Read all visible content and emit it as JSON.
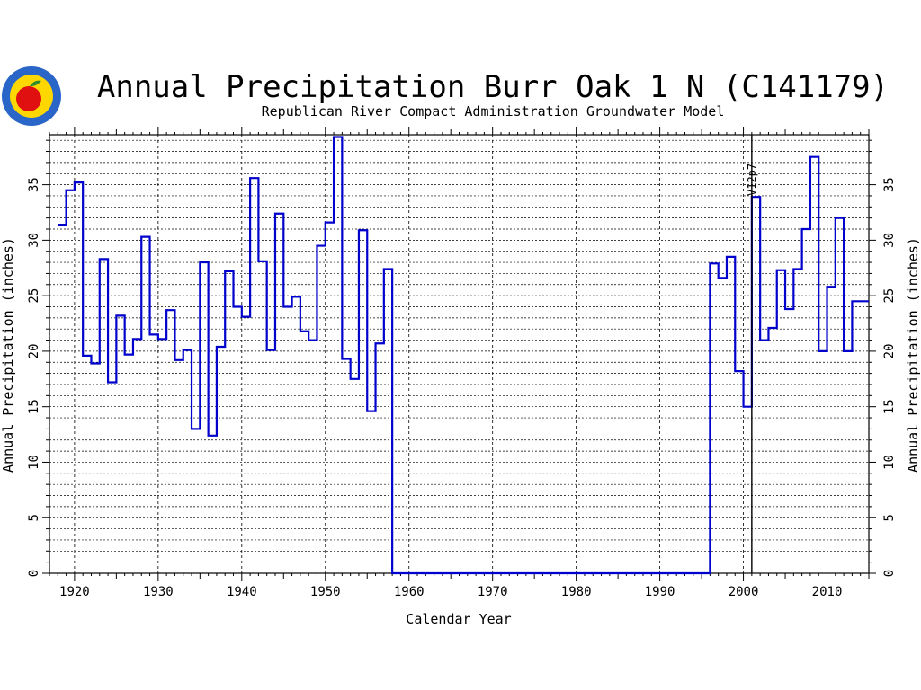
{
  "chart_data": {
    "type": "line",
    "step": true,
    "title": "Annual Precipitation Burr Oak 1 N (C141179)",
    "subtitle": "Republican River Compact Administration Groundwater Model",
    "xlabel": "Calendar Year",
    "ylabel_left": "Annual Precipitation (inches)",
    "ylabel_right": "Annual Precipitation (inches)",
    "xlim": [
      1917,
      2015
    ],
    "ylim": [
      0,
      39.5
    ],
    "x_ticks": [
      1920,
      1930,
      1940,
      1950,
      1960,
      1970,
      1980,
      1990,
      2000,
      2010
    ],
    "y_ticks": [
      0,
      5,
      10,
      15,
      20,
      25,
      30,
      35
    ],
    "grid": true,
    "minor_y_step": 1,
    "annotation": {
      "text": "V12p7",
      "x": 2001
    },
    "series": [
      {
        "color": "#0000cc",
        "points": [
          [
            1918,
            31.4
          ],
          [
            1919,
            34.5
          ],
          [
            1920,
            35.2
          ],
          [
            1921,
            19.6
          ],
          [
            1922,
            18.9
          ],
          [
            1923,
            28.3
          ],
          [
            1924,
            17.2
          ],
          [
            1925,
            23.2
          ],
          [
            1926,
            19.7
          ],
          [
            1927,
            21.1
          ],
          [
            1928,
            30.3
          ],
          [
            1929,
            21.5
          ],
          [
            1930,
            21.1
          ],
          [
            1931,
            23.7
          ],
          [
            1932,
            19.2
          ],
          [
            1933,
            20.1
          ],
          [
            1934,
            13.0
          ],
          [
            1935,
            28.0
          ],
          [
            1936,
            12.4
          ],
          [
            1937,
            20.4
          ],
          [
            1938,
            27.2
          ],
          [
            1939,
            24.0
          ],
          [
            1940,
            23.1
          ],
          [
            1941,
            35.6
          ],
          [
            1942,
            28.1
          ],
          [
            1943,
            20.1
          ],
          [
            1944,
            32.4
          ],
          [
            1945,
            24.0
          ],
          [
            1946,
            24.9
          ],
          [
            1947,
            21.8
          ],
          [
            1948,
            21.0
          ],
          [
            1949,
            29.5
          ],
          [
            1950,
            31.6
          ],
          [
            1951,
            39.3
          ],
          [
            1952,
            19.3
          ],
          [
            1953,
            17.5
          ],
          [
            1954,
            30.9
          ],
          [
            1955,
            14.6
          ],
          [
            1956,
            20.7
          ],
          [
            1957,
            27.4
          ],
          [
            1958,
            0.0
          ],
          [
            1959,
            0.0
          ],
          [
            1960,
            0.0
          ],
          [
            1961,
            0.0
          ],
          [
            1962,
            0.0
          ],
          [
            1963,
            0.0
          ],
          [
            1964,
            0.0
          ],
          [
            1965,
            0.0
          ],
          [
            1966,
            0.0
          ],
          [
            1967,
            0.0
          ],
          [
            1968,
            0.0
          ],
          [
            1969,
            0.0
          ],
          [
            1970,
            0.0
          ],
          [
            1971,
            0.0
          ],
          [
            1972,
            0.0
          ],
          [
            1973,
            0.0
          ],
          [
            1974,
            0.0
          ],
          [
            1975,
            0.0
          ],
          [
            1976,
            0.0
          ],
          [
            1977,
            0.0
          ],
          [
            1978,
            0.0
          ],
          [
            1979,
            0.0
          ],
          [
            1980,
            0.0
          ],
          [
            1981,
            0.0
          ],
          [
            1982,
            0.0
          ],
          [
            1983,
            0.0
          ],
          [
            1984,
            0.0
          ],
          [
            1985,
            0.0
          ],
          [
            1986,
            0.0
          ],
          [
            1987,
            0.0
          ],
          [
            1988,
            0.0
          ],
          [
            1989,
            0.0
          ],
          [
            1990,
            0.0
          ],
          [
            1991,
            0.0
          ],
          [
            1992,
            0.0
          ],
          [
            1993,
            0.0
          ],
          [
            1994,
            0.0
          ],
          [
            1995,
            0.0
          ],
          [
            1996,
            27.9
          ],
          [
            1997,
            26.6
          ],
          [
            1998,
            28.5
          ],
          [
            1999,
            18.2
          ],
          [
            2000,
            15.0
          ],
          [
            2001,
            33.9
          ],
          [
            2002,
            21.0
          ],
          [
            2003,
            22.1
          ],
          [
            2004,
            27.3
          ],
          [
            2005,
            23.8
          ],
          [
            2006,
            27.4
          ],
          [
            2007,
            31.0
          ],
          [
            2008,
            37.5
          ],
          [
            2009,
            20.0
          ],
          [
            2010,
            25.8
          ],
          [
            2011,
            32.0
          ],
          [
            2012,
            20.0
          ],
          [
            2013,
            24.5
          ],
          [
            2014,
            24.5
          ]
        ]
      }
    ]
  },
  "logo": {
    "name": "logo-seal",
    "colors": {
      "ring": "#2a66c8",
      "inner": "#ffd700",
      "apple": "#e01010",
      "leaf": "#2c8f2c"
    }
  }
}
